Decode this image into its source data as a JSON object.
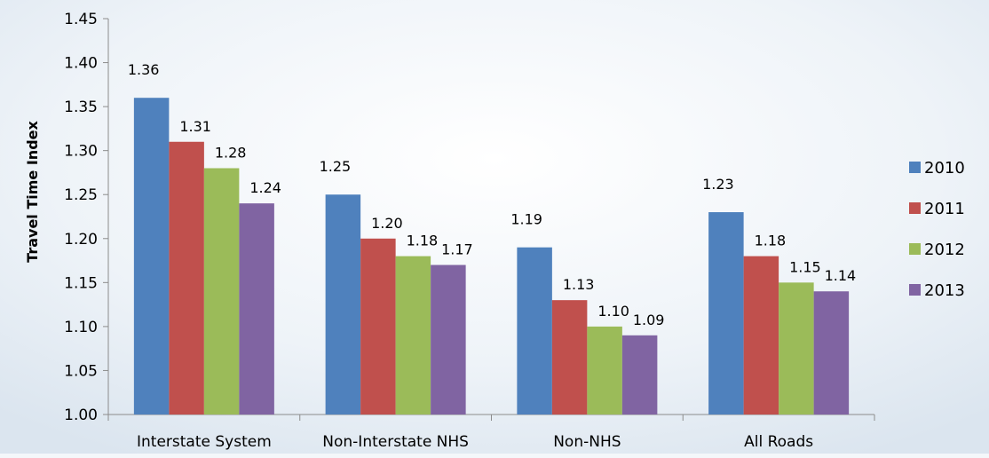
{
  "chart_data": {
    "type": "bar",
    "title": "",
    "xlabel": "",
    "ylabel": "Travel Time Index",
    "ylim": [
      1.0,
      1.45
    ],
    "y_ticks": [
      1.0,
      1.05,
      1.1,
      1.15,
      1.2,
      1.25,
      1.3,
      1.35,
      1.4,
      1.45
    ],
    "y_tick_labels": [
      "1.00",
      "1.05",
      "1.10",
      "1.15",
      "1.20",
      "1.25",
      "1.30",
      "1.35",
      "1.40",
      "1.45"
    ],
    "categories": [
      "Interstate System",
      "Non-Interstate NHS",
      "Non-NHS",
      "All Roads"
    ],
    "legend_position": "right",
    "grid": false,
    "series": [
      {
        "name": "2010",
        "color": "#4f81bd",
        "values": [
          1.36,
          1.25,
          1.19,
          1.23
        ],
        "labels": [
          "1.36",
          "1.25",
          "1.19",
          "1.23"
        ]
      },
      {
        "name": "2011",
        "color": "#c0504d",
        "values": [
          1.31,
          1.2,
          1.13,
          1.18
        ],
        "labels": [
          "1.31",
          "1.20",
          "1.13",
          "1.18"
        ]
      },
      {
        "name": "2012",
        "color": "#9bbb59",
        "values": [
          1.28,
          1.18,
          1.1,
          1.15
        ],
        "labels": [
          "1.28",
          "1.18",
          "1.10",
          "1.15"
        ]
      },
      {
        "name": "2013",
        "color": "#8064a2",
        "values": [
          1.24,
          1.17,
          1.09,
          1.14
        ],
        "labels": [
          "1.24",
          "1.17",
          "1.09",
          "1.14"
        ]
      }
    ]
  }
}
